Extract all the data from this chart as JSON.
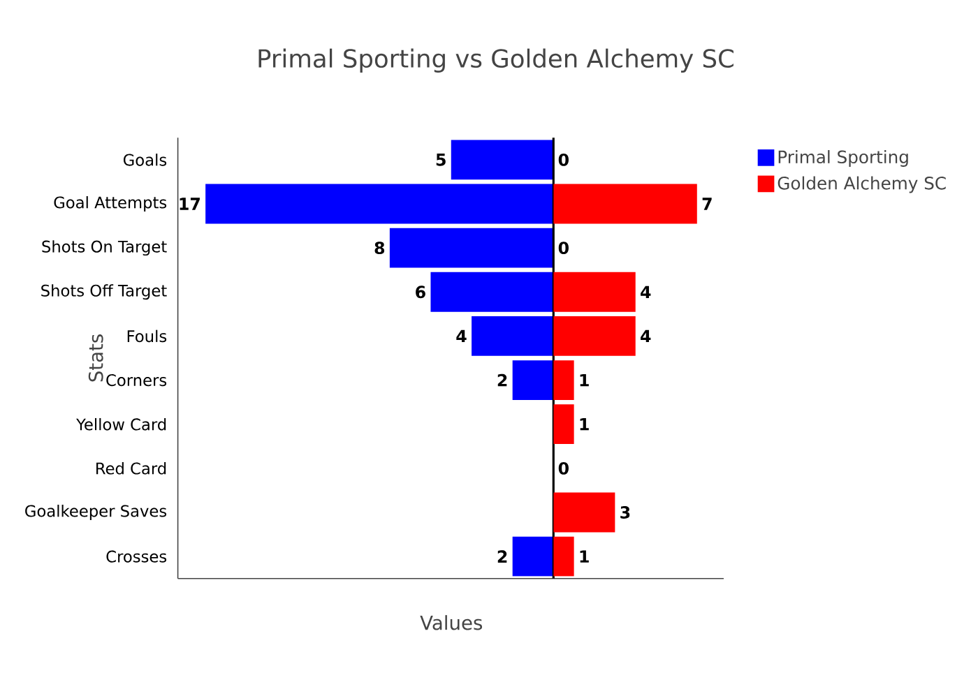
{
  "chart_data": [
    {
      "type": "bar",
      "orientation": "horizontal",
      "title": "Primal Sporting vs Golden Alchemy SC",
      "xlabel": "Values",
      "ylabel": "Stats",
      "categories": [
        "Goals",
        "Goal Attempts",
        "Shots On Target",
        "Shots Off Target",
        "Fouls",
        "Corners",
        "Yellow Card",
        "Red Card",
        "Goalkeeper Saves",
        "Crosses"
      ],
      "series": [
        {
          "name": "Primal Sporting",
          "color": "#0000ff",
          "values": [
            5,
            17,
            8,
            6,
            4,
            2,
            0,
            0,
            0,
            2
          ],
          "value_labels": [
            "5",
            "17",
            "8",
            "6",
            "4",
            "2",
            null,
            null,
            null,
            "2"
          ]
        }
      ],
      "xlim": [
        18.35,
        0
      ],
      "tick_labels": "y",
      "legend": "top right"
    },
    {
      "type": "bar",
      "orientation": "horizontal",
      "categories": [
        null,
        null,
        null,
        null,
        null,
        null,
        null,
        null,
        null,
        null
      ],
      "series": [
        {
          "name": "Golden Alchemy SC",
          "color": "#ff0000",
          "values": [
            0,
            7,
            0,
            4,
            4,
            1,
            1,
            0,
            3,
            1
          ],
          "value_labels": [
            "0",
            "7",
            "0",
            "4",
            "4",
            "1",
            "1",
            "0",
            "3",
            "1"
          ]
        }
      ],
      "xlim": [
        0,
        8.3
      ],
      "tick_labels": false,
      "legend": "top right"
    }
  ]
}
